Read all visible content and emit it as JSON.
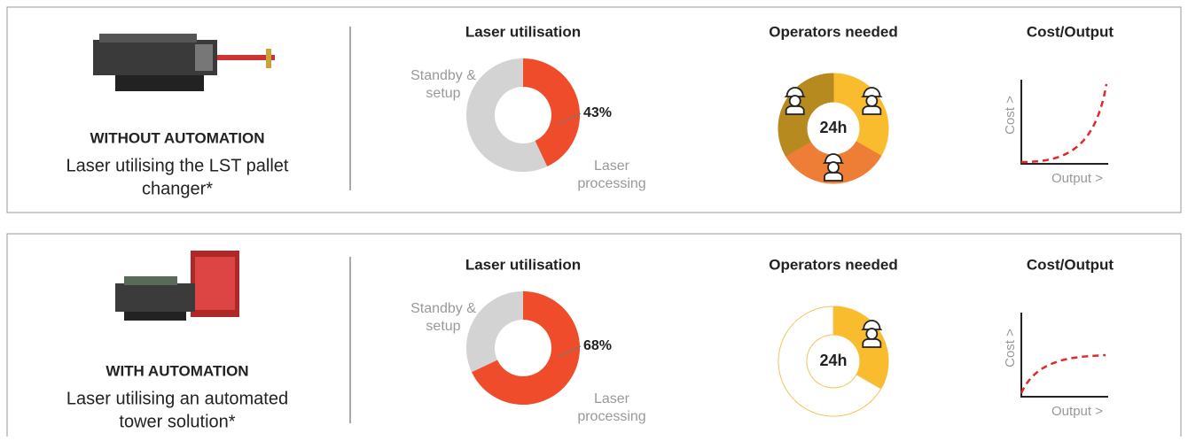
{
  "panels": [
    {
      "heading": "WITHOUT AUTOMATION",
      "description": [
        "Laser utilising the LST pallet",
        "changer*"
      ],
      "utilisation": {
        "title": "Laser utilisation",
        "value": 43,
        "value_label": "43%",
        "standby_label": [
          "Standby &",
          "setup"
        ],
        "processing_label": [
          "Laser",
          "processing"
        ]
      },
      "operators": {
        "title": "Operators needed",
        "center_label": "24h",
        "segments": [
          {
            "value": 8,
            "color": "#f9bc2f"
          },
          {
            "value": 8,
            "color": "#ee7d36"
          },
          {
            "value": 8,
            "color": "#b68a1f"
          }
        ]
      },
      "cost": {
        "title": "Cost/Output",
        "y_label": "Cost >",
        "x_label": "Output >"
      }
    },
    {
      "heading": "WITH AUTOMATION",
      "description": [
        "Laser utilising an automated",
        "tower solution*"
      ],
      "utilisation": {
        "title": "Laser utilisation",
        "value": 68,
        "value_label": "68%",
        "standby_label": [
          "Standby &",
          "setup"
        ],
        "processing_label": [
          "Laser",
          "processing"
        ]
      },
      "operators": {
        "title": "Operators needed",
        "center_label": "24h",
        "segments": [
          {
            "value": 8,
            "color": "#f9bc2f"
          },
          {
            "value": 16,
            "color": "#ffffff"
          }
        ]
      },
      "cost": {
        "title": "Cost/Output",
        "y_label": "Cost >",
        "x_label": "Output >"
      }
    }
  ]
}
